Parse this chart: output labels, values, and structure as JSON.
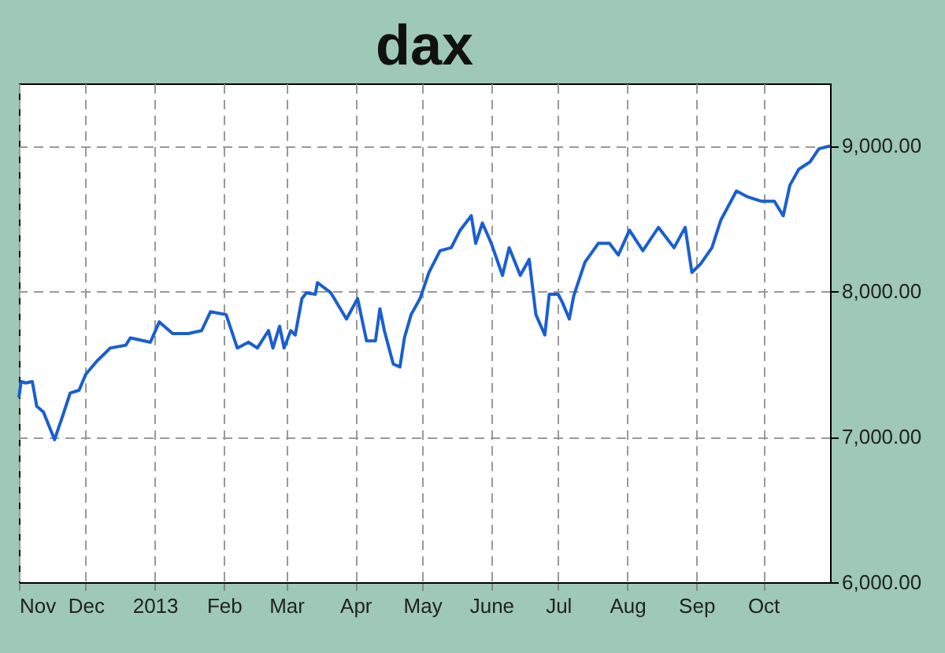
{
  "chart_data": {
    "type": "line",
    "title": "dax",
    "x": [
      "2012-11-01",
      "2012-11-02",
      "2012-11-04",
      "2012-11-07",
      "2012-11-09",
      "2012-11-12",
      "2012-11-17",
      "2012-11-21",
      "2012-11-24",
      "2012-11-28",
      "2012-12-01",
      "2012-12-06",
      "2012-12-12",
      "2012-12-19",
      "2012-12-21",
      "2012-12-30",
      "2013-01-03",
      "2013-01-09",
      "2013-01-16",
      "2013-01-22",
      "2013-01-26",
      "2013-02-02",
      "2013-02-07",
      "2013-02-12",
      "2013-02-16",
      "2013-02-21",
      "2013-02-23",
      "2013-02-26",
      "2013-02-28",
      "2013-03-03",
      "2013-03-05",
      "2013-03-08",
      "2013-03-10",
      "2013-03-14",
      "2013-03-15",
      "2013-03-21",
      "2013-03-28",
      "2013-04-02",
      "2013-04-06",
      "2013-04-10",
      "2013-04-12",
      "2013-04-14",
      "2013-04-18",
      "2013-04-21",
      "2013-04-23",
      "2013-04-26",
      "2013-04-30",
      "2013-05-04",
      "2013-05-09",
      "2013-05-14",
      "2013-05-18",
      "2013-05-23",
      "2013-05-25",
      "2013-05-28",
      "2013-06-01",
      "2013-06-06",
      "2013-06-09",
      "2013-06-14",
      "2013-06-18",
      "2013-06-21",
      "2013-06-25",
      "2013-06-27",
      "2013-07-01",
      "2013-07-03",
      "2013-07-06",
      "2013-07-08",
      "2013-07-13",
      "2013-07-19",
      "2013-07-24",
      "2013-07-28",
      "2013-08-02",
      "2013-08-08",
      "2013-08-15",
      "2013-08-22",
      "2013-08-27",
      "2013-08-30",
      "2013-09-03",
      "2013-09-08",
      "2013-09-12",
      "2013-09-19",
      "2013-09-24",
      "2013-09-30",
      "2013-10-06",
      "2013-10-10",
      "2013-10-13",
      "2013-10-17",
      "2013-10-22",
      "2013-10-26",
      "2013-10-31"
    ],
    "series": [
      {
        "color": "#1a5fd0",
        "values": [
          7270,
          7380,
          7370,
          7380,
          7210,
          7170,
          6980,
          7160,
          7300,
          7320,
          7430,
          7520,
          7610,
          7630,
          7680,
          7650,
          7790,
          7710,
          7710,
          7730,
          7860,
          7840,
          7610,
          7650,
          7610,
          7730,
          7610,
          7760,
          7610,
          7730,
          7700,
          7950,
          7990,
          7980,
          8060,
          7990,
          7810,
          7950,
          7660,
          7660,
          7880,
          7730,
          7500,
          7480,
          7680,
          7840,
          7950,
          8130,
          8280,
          8300,
          8420,
          8520,
          8330,
          8470,
          8330,
          8110,
          8300,
          8110,
          8220,
          7840,
          7700,
          7980,
          7980,
          7920,
          7810,
          7970,
          8200,
          8330,
          8330,
          8250,
          8420,
          8280,
          8440,
          8300,
          8440,
          8130,
          8190,
          8300,
          8490,
          8690,
          8650,
          8620,
          8620,
          8520,
          8730,
          8840,
          8890,
          8980,
          9000
        ]
      }
    ],
    "xlim": [
      "2012-11-01",
      "2013-10-31"
    ],
    "xticks": [
      {
        "value": "2012-11-01",
        "label": "Nov"
      },
      {
        "value": "2012-12-01",
        "label": "Dec"
      },
      {
        "value": "2013-01-01",
        "label": "2013"
      },
      {
        "value": "2013-02-01",
        "label": "Feb"
      },
      {
        "value": "2013-03-01",
        "label": "Mar"
      },
      {
        "value": "2013-04-01",
        "label": "Apr"
      },
      {
        "value": "2013-05-01",
        "label": "May"
      },
      {
        "value": "2013-06-01",
        "label": "June"
      },
      {
        "value": "2013-07-01",
        "label": "Jul"
      },
      {
        "value": "2013-08-01",
        "label": "Aug"
      },
      {
        "value": "2013-09-01",
        "label": "Sep"
      },
      {
        "value": "2013-10-01",
        "label": "Oct"
      }
    ],
    "ylim": [
      6000,
      9430
    ],
    "yticks": [
      {
        "value": 6000,
        "label": "6,000.00"
      },
      {
        "value": 7000,
        "label": "7,000.00"
      },
      {
        "value": 8000,
        "label": "8,000.00"
      },
      {
        "value": 9000,
        "label": "9,000.00"
      }
    ],
    "grid": true,
    "line_style": "solid",
    "marker": "none",
    "legend": false
  }
}
